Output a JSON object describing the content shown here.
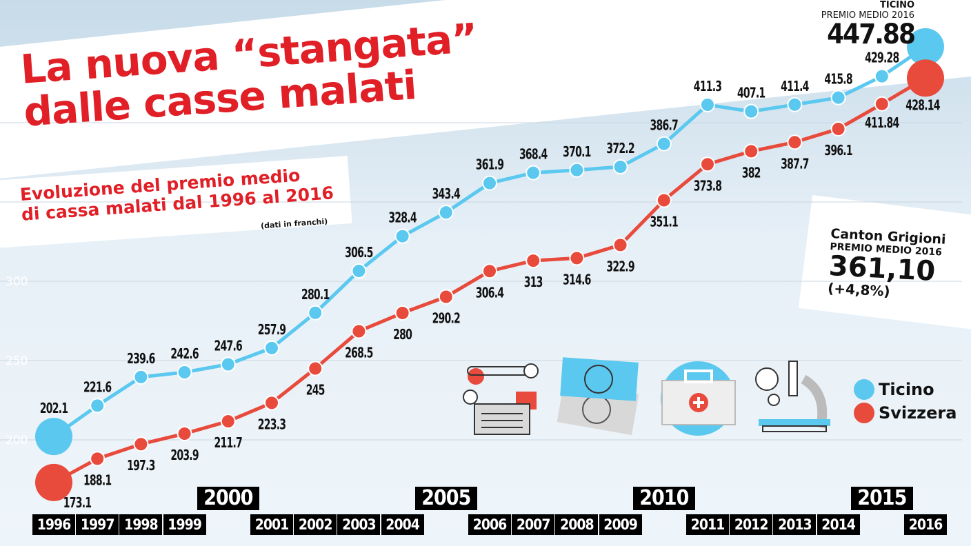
{
  "title": "La nuova “stangata”\ndalle casse malati",
  "subtitle": "Evoluzione del premio medio\ndi cassa malati dal 1996 al 2016",
  "unit_note": "(dati in franchi)",
  "ticino_highlight": {
    "region": "TICINO",
    "label": "PREMIO MEDIO 2016",
    "value": "447.88"
  },
  "grigioni_highlight": {
    "region": "Canton Grigioni",
    "label": "PREMIO MEDIO 2016",
    "value": "361,10",
    "change": "(+4,8%)"
  },
  "colors": {
    "ticino": "#5bc8ef",
    "svizzera": "#e84a3c",
    "title": "#e01f26"
  },
  "chart_data": {
    "type": "line",
    "x": [
      1996,
      1997,
      1998,
      1999,
      2000,
      2001,
      2002,
      2003,
      2004,
      2005,
      2006,
      2007,
      2008,
      2009,
      2010,
      2011,
      2012,
      2013,
      2014,
      2015,
      2016
    ],
    "tick_labels": [
      "1996",
      "1997",
      "1998",
      "1999",
      "2000",
      "2001",
      "2002",
      "2003",
      "2004",
      "2005",
      "2006",
      "2007",
      "2008",
      "2009",
      "2010",
      "2011",
      "2012",
      "2013",
      "2014",
      "2015",
      "2016"
    ],
    "y_ticks": [
      200,
      250,
      300
    ],
    "grid": true,
    "legend_position": "right",
    "series": [
      {
        "name": "Ticino",
        "color": "#5bc8ef",
        "values": [
          202.1,
          221.6,
          239.6,
          242.6,
          247.6,
          257.9,
          280.1,
          306.5,
          328.4,
          343.4,
          361.9,
          368.4,
          370.1,
          372.2,
          386.7,
          411.3,
          407.1,
          411.4,
          415.8,
          429.28,
          447.88
        ],
        "labels": [
          "202.1",
          "221.6",
          "239.6",
          "242.6",
          "247.6",
          "257.9",
          "280.1",
          "306.5",
          "328.4",
          "343.4",
          "361.9",
          "368.4",
          "370.1",
          "372.2",
          "386.7",
          "411.3",
          "407.1",
          "411.4",
          "415.8",
          "429.28",
          ""
        ]
      },
      {
        "name": "Svizzera",
        "color": "#e84a3c",
        "values": [
          173.1,
          188.1,
          197.3,
          203.9,
          211.7,
          223.3,
          245,
          268.5,
          280,
          290.2,
          306.4,
          313,
          314.6,
          322.9,
          351.1,
          373.8,
          382,
          387.7,
          396.1,
          411.84,
          428.14
        ],
        "labels": [
          "173.1",
          "188.1",
          "197.3",
          "203.9",
          "211.7",
          "223.3",
          "245",
          "268.5",
          "280",
          "290.2",
          "306.4",
          "313",
          "314.6",
          "322.9",
          "351.1",
          "373.8",
          "382",
          "387.7",
          "396.1",
          "411.84",
          "428.14"
        ]
      }
    ]
  }
}
